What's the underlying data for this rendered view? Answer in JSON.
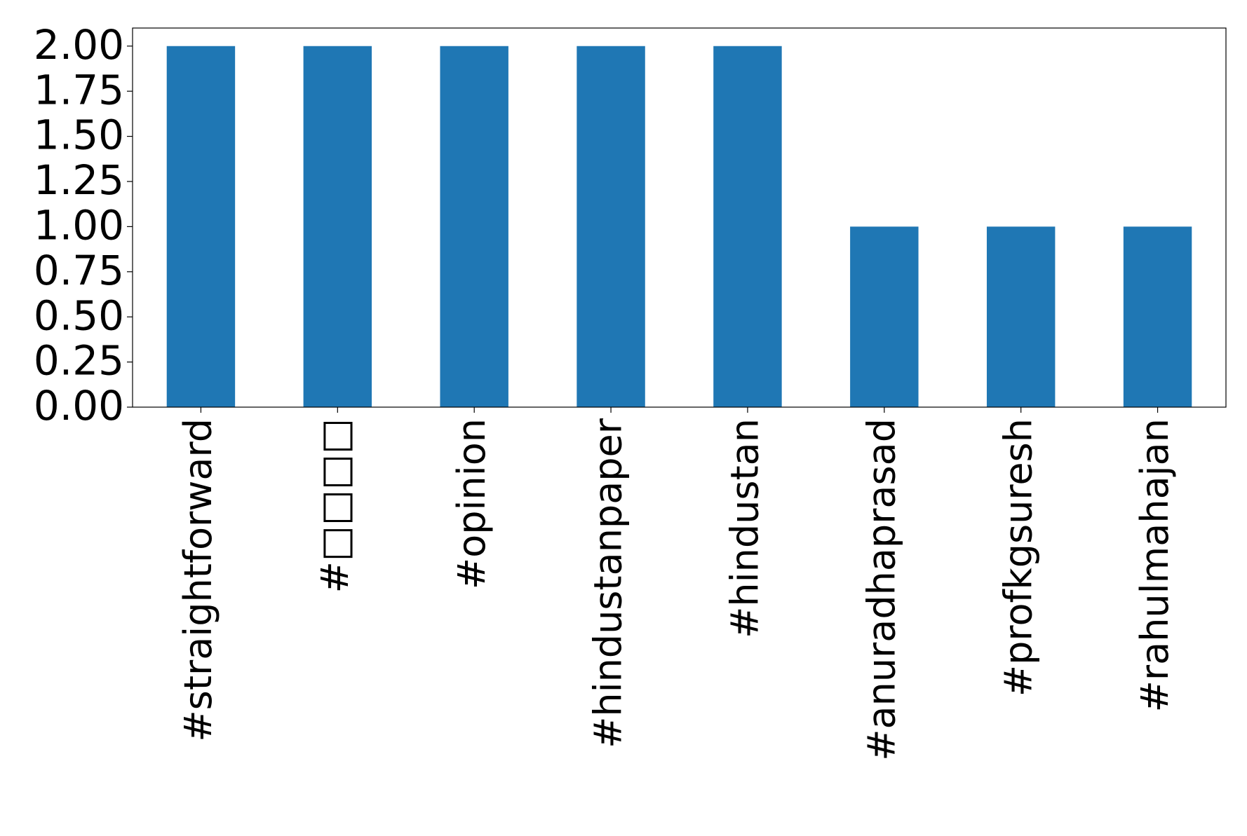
{
  "chart_data": {
    "type": "bar",
    "categories": [
      "#straightforward",
      "#□□□□",
      "#opinion",
      "#hindustanpaper",
      "#hindustan",
      "#anuradhaprasad",
      "#profkgsuresh",
      "#rahulmahajan"
    ],
    "values": [
      2,
      2,
      2,
      2,
      2,
      1,
      1,
      1
    ],
    "color": "#1f77b4",
    "ylim": [
      0,
      2.1
    ],
    "yticks": [
      {
        "value": 0,
        "label": "0.00"
      },
      {
        "value": 0.25,
        "label": "0.25"
      },
      {
        "value": 0.5,
        "label": "0.50"
      },
      {
        "value": 0.75,
        "label": "0.75"
      },
      {
        "value": 1,
        "label": "1.00"
      },
      {
        "value": 1.25,
        "label": "1.25"
      },
      {
        "value": 1.5,
        "label": "1.50"
      },
      {
        "value": 1.75,
        "label": "1.75"
      },
      {
        "value": 2,
        "label": "2.00"
      }
    ],
    "grid": false
  }
}
